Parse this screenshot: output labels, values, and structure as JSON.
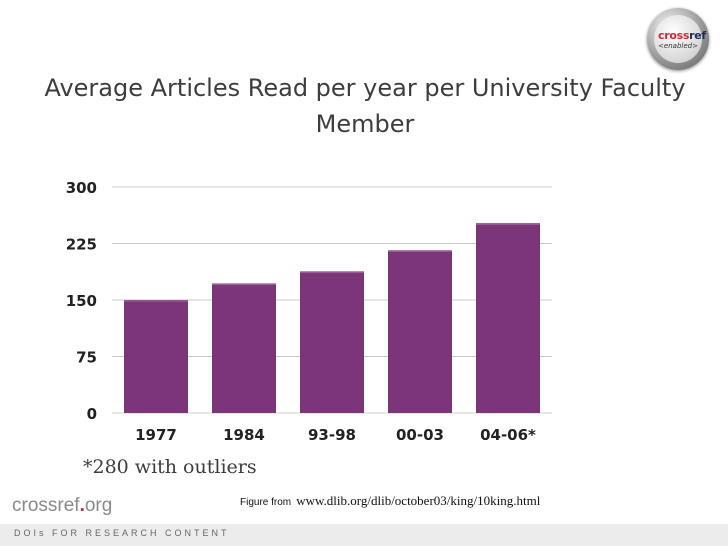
{
  "badge": {
    "logo_text": "crossref <enabled>"
  },
  "slide": {
    "title_line1": "Average Articles Read  per year per University Faculty",
    "title_line2": "Member",
    "footnote": "*280 with outliers",
    "caption_prefix": "Figure from",
    "caption_url": "www.dlib.org/dlib/october03/king/10king.html"
  },
  "footer": {
    "logo_text": "crossref.org",
    "tagline": "DOIs FOR RESEARCH CONTENT"
  },
  "colors": {
    "bar": "#7b3578",
    "grid": "#cccccc",
    "text": "#3d3d3d"
  },
  "chart_data": {
    "type": "bar",
    "title": "Average Articles Read  per year per University Faculty Member",
    "xlabel": "",
    "ylabel": "",
    "categories": [
      "1977",
      "1984",
      "93-98",
      "00-03",
      "04-06*"
    ],
    "values": [
      150,
      172,
      188,
      216,
      252
    ],
    "ylim": [
      0,
      300
    ],
    "yticks": [
      0,
      75,
      150,
      225,
      300
    ],
    "grid": true,
    "legend": "none"
  }
}
